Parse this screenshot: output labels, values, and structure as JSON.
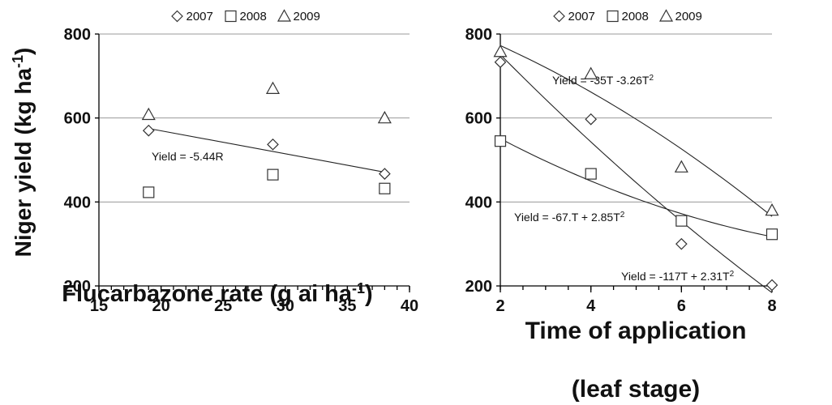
{
  "figure": {
    "ylabel_main": "Niger yield (kg ha",
    "ylabel_sup": "-1",
    "ylabel_close": ")"
  },
  "chart_data": [
    {
      "type": "scatter",
      "xlabel_main": "Flucarbazone rate (g ai ha",
      "xlabel_sup": "-1",
      "xlabel_close": ")",
      "ylabel": "Niger yield (kg ha-1)",
      "xlim": [
        15,
        40
      ],
      "ylim": [
        200,
        800
      ],
      "xticks": [
        15,
        20,
        25,
        30,
        35,
        40
      ],
      "yticks": [
        200,
        400,
        600,
        800
      ],
      "grid": true,
      "legend": {
        "position": "top",
        "entries": [
          "2007",
          "2008",
          "2009"
        ]
      },
      "series": [
        {
          "name": "2007",
          "marker": "diamond",
          "x": [
            19,
            29,
            38
          ],
          "y": [
            570,
            537,
            467
          ]
        },
        {
          "name": "2008",
          "marker": "square",
          "x": [
            19,
            29,
            38
          ],
          "y": [
            423,
            465,
            432
          ]
        },
        {
          "name": "2009",
          "marker": "triangle",
          "x": [
            19,
            29,
            38
          ],
          "y": [
            608,
            670,
            600
          ]
        }
      ],
      "fits": [
        {
          "series": "2007",
          "kind": "linear",
          "x": [
            19,
            38
          ],
          "y": [
            575,
            471
          ],
          "label_main": "Yield = -5.44R",
          "label_sup": ""
        }
      ]
    },
    {
      "type": "scatter",
      "xlabel_line1": "Time of application",
      "xlabel_line2": "(leaf stage)",
      "ylabel": "Niger yield (kg ha-1)",
      "xlim": [
        2,
        8
      ],
      "ylim": [
        200,
        800
      ],
      "xticks": [
        2,
        4,
        6,
        8
      ],
      "yticks": [
        200,
        400,
        600,
        800
      ],
      "grid": true,
      "legend": {
        "position": "top",
        "entries": [
          "2007",
          "2008",
          "2009"
        ]
      },
      "series": [
        {
          "name": "2007",
          "marker": "diamond",
          "x": [
            2,
            4,
            6,
            8
          ],
          "y": [
            733,
            597,
            300,
            202
          ]
        },
        {
          "name": "2008",
          "marker": "square",
          "x": [
            2,
            4,
            6,
            8
          ],
          "y": [
            545,
            467,
            355,
            323
          ]
        },
        {
          "name": "2009",
          "marker": "triangle",
          "x": [
            2,
            4,
            6,
            8
          ],
          "y": [
            758,
            705,
            483,
            380
          ]
        }
      ],
      "fits": [
        {
          "series": "2009",
          "kind": "quadratic",
          "x": [
            2,
            8
          ],
          "y": [
            775,
            365
          ],
          "label_main": "Yield = -35T -3.26T",
          "label_sup": "2"
        },
        {
          "series": "2008",
          "kind": "quadratic",
          "x": [
            2,
            8
          ],
          "y": [
            550,
            320
          ],
          "label_main": "Yield = -67.T + 2.85T",
          "label_sup": "2"
        },
        {
          "series": "2007",
          "kind": "quadratic",
          "x": [
            2,
            8
          ],
          "y": [
            760,
            185
          ],
          "label_main": "Yield = -117T + 2.31T",
          "label_sup": "2"
        }
      ]
    }
  ]
}
